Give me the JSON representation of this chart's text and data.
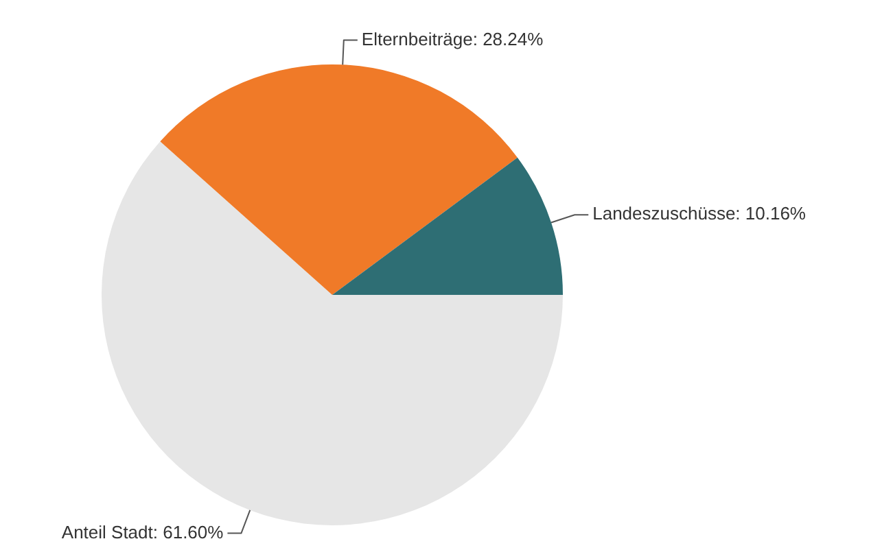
{
  "chart_data": {
    "type": "pie",
    "categories": [
      "Anteil Stadt",
      "Elternbeiträge",
      "Landeszuschüsse"
    ],
    "values": [
      61.6,
      28.24,
      10.16
    ],
    "value_labels": [
      "61.60%",
      "28.24%",
      "10.16%"
    ],
    "colors": [
      "#e6e6e6",
      "#f07a28",
      "#2e6e74"
    ],
    "legend": false
  }
}
